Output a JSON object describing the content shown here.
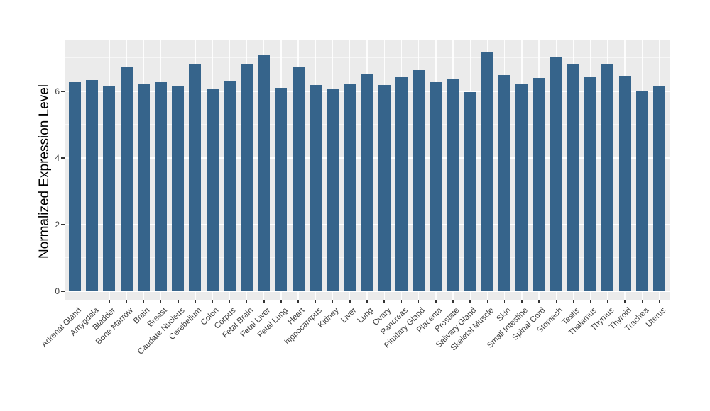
{
  "chart_data": {
    "type": "bar",
    "title": "",
    "xlabel": "",
    "ylabel": "Normalized Expression Level",
    "categories": [
      "Adrenal Gland",
      "Amygdala",
      "Bladder",
      "Bone Marrow",
      "Brain",
      "Breast",
      "Caudate Nucleus",
      "Cerebellum",
      "Colon",
      "Corpus",
      "Fetal Brain",
      "Fetal Liver",
      "Fetal Lung",
      "Heart",
      "hippocampus",
      "Kidney",
      "Liver",
      "Lung",
      "Ovary",
      "Pancreas",
      "Pituitary Gland",
      "Placenta",
      "Prostate",
      "Salivary Gland",
      "Skeletal Muscle",
      "Skin",
      "Small Intestine",
      "Spinal Cord",
      "Stomach",
      "Testis",
      "Thalamus",
      "Thymus",
      "Thyroid",
      "Trachea",
      "Uterus"
    ],
    "values": [
      6.27,
      6.35,
      6.14,
      6.75,
      6.22,
      6.27,
      6.17,
      6.82,
      6.07,
      6.3,
      6.81,
      7.09,
      6.11,
      6.75,
      6.2,
      6.07,
      6.24,
      6.54,
      6.2,
      6.44,
      6.64,
      6.27,
      6.36,
      5.97,
      7.16,
      6.48,
      6.24,
      6.41,
      7.05,
      6.82,
      6.42,
      6.81,
      6.47,
      6.02,
      6.16
    ],
    "ylim": [
      0,
      7.55
    ],
    "yticks": [
      0,
      2,
      4,
      6
    ],
    "yticks_minor": [
      1,
      3,
      5,
      7
    ],
    "grid": "major-and-minor, white on gray panel",
    "legend": false,
    "style": "ggplot2-gray-theme",
    "colors": {
      "bar_fill": "#36648B",
      "panel_background": "#EBEBEB",
      "grid_major": "#FFFFFF",
      "tick_text": "#404040",
      "axis_title_text": "#000000",
      "figure_background": "#FFFFFF"
    }
  }
}
